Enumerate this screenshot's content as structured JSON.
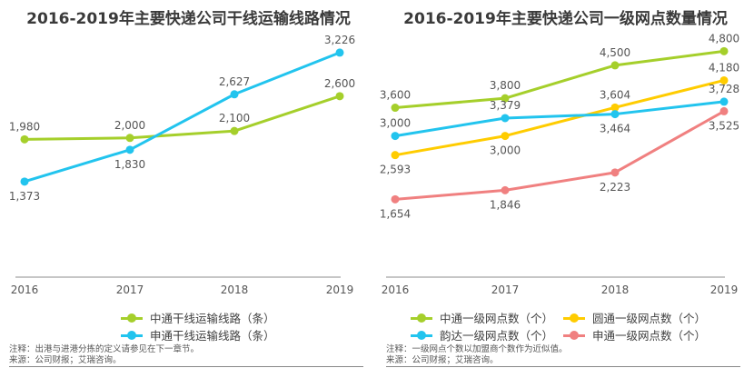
{
  "chart_data": [
    {
      "type": "line",
      "title": "2016-2019年主要快递公司干线运输线路情况",
      "categories": [
        "2016",
        "2017",
        "2018",
        "2019"
      ],
      "series": [
        {
          "name": "中通干线运输线路（条）",
          "color": "#a5cf2b",
          "values": [
            1980,
            2000,
            2100,
            2600
          ],
          "labels": [
            "1,980",
            "2,000",
            "2,100",
            "2,600"
          ]
        },
        {
          "name": "申通干线运输线路（条）",
          "color": "#22c4ee",
          "values": [
            1373,
            1830,
            2627,
            3226
          ],
          "labels": [
            "1,373",
            "1,830",
            "2,627",
            "3,226"
          ]
        }
      ],
      "ylim": [
        0,
        3600
      ],
      "grid": false,
      "legend_position": "bottom"
    },
    {
      "type": "line",
      "title": "2016-2019年主要快递公司一级网点数量情况",
      "categories": [
        "2016",
        "2017",
        "2018",
        "2019"
      ],
      "series": [
        {
          "name": "中通一级网点数（个）",
          "color": "#a5cf2b",
          "values": [
            3600,
            3800,
            4500,
            4800
          ],
          "labels": [
            "3,600",
            "3,800",
            "4,500",
            "4,800"
          ]
        },
        {
          "name": "圆通一级网点数（个）",
          "color": "#ffcc00",
          "values": [
            2593,
            3000,
            3604,
            4180
          ],
          "labels": [
            "2,593",
            "3,000",
            "3,604",
            "4,180"
          ]
        },
        {
          "name": "韵达一级网点数（个）",
          "color": "#22c4ee",
          "values": [
            3000,
            3379,
            3464,
            3728
          ],
          "labels": [
            "3,000",
            "3,379",
            "3,464",
            "3,728"
          ]
        },
        {
          "name": "申通一级网点数（个）",
          "color": "#f08080",
          "values": [
            1654,
            1846,
            2223,
            3525
          ],
          "labels": [
            "1,654",
            "1,846",
            "2,223",
            "3,525"
          ]
        }
      ],
      "ylim": [
        0,
        5000
      ],
      "grid": false,
      "legend_position": "bottom"
    }
  ],
  "notes": {
    "left_note": "注释：出港与进港分拣的定义请参见在下一章节。",
    "left_source": "来源：公司财报；艾瑞咨询。",
    "right_note": "注释：一级网点个数以加盟商个数作为近似值。",
    "right_source": "来源：公司财报；艾瑞咨询。"
  }
}
